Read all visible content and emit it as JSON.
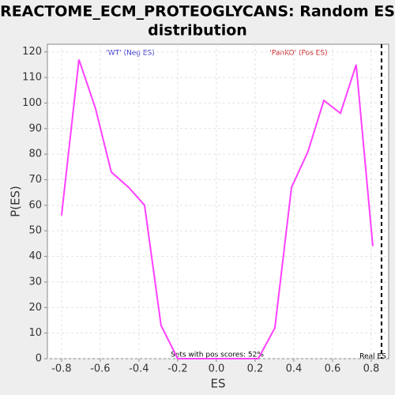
{
  "chart_data": {
    "type": "line",
    "title": "REACTOME_ECM_PROTEOGLYCANS: Random ES",
    "title_line2": "distribution",
    "x_label": "ES",
    "y_label": "P(ES)",
    "annotation_neg": "'WT' (Neg ES)",
    "annotation_pos": "'PanKO' (Pos ES)",
    "annotation_pos_scores": "Sets with pos scores: 52%",
    "real_es_label": "Real ES",
    "real_es": 0.853,
    "x": [
      -0.8,
      -0.71,
      -0.625,
      -0.543,
      -0.453,
      -0.371,
      -0.286,
      -0.2,
      -0.116,
      -0.031,
      0.047,
      0.131,
      0.216,
      0.302,
      0.388,
      0.473,
      0.555,
      0.641,
      0.722,
      0.808
    ],
    "series": [
      {
        "name": "Random ES",
        "color": "#ff40ff",
        "values": [
          56,
          117,
          98,
          73,
          67,
          60,
          13,
          0,
          0,
          0,
          0,
          0,
          0,
          12,
          67,
          81,
          101,
          96,
          115,
          44
        ]
      }
    ],
    "xlim": [
      -0.873,
      0.89
    ],
    "ylim": [
      0,
      123
    ],
    "xticks": [
      -0.8,
      -0.6,
      -0.4,
      -0.2,
      {
        "value": 0,
        "label": "0.0"
      },
      0.2,
      0.4,
      0.6,
      0.8
    ],
    "yticks": [
      0,
      10,
      20,
      30,
      40,
      50,
      60,
      70,
      80,
      90,
      100,
      110,
      120
    ],
    "grid": true
  }
}
